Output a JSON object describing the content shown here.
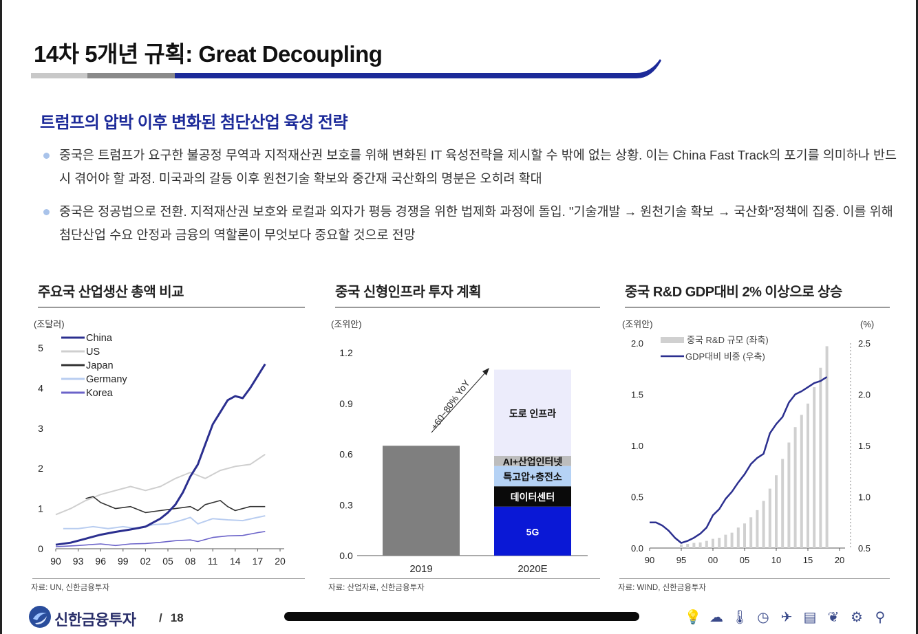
{
  "page": {
    "title": "14차 5개년 규획: Great Decoupling",
    "subtitle": "트럼프의 압박 이후 변화된 첨단산업 육성 전략",
    "bullets": [
      "중국은 트럼프가 요구한 불공정 무역과 지적재산권 보호를 위해 변화된 IT 육성전략을 제시할 수 밖에 없는 상황. 이는 China Fast Track의 포기를 의미하나 반드시 겪어야 할 과정. 미국과의 갈등 이후 원천기술 확보와 중간재 국산화의 명분은 오히려 확대",
      "중국은 정공법으로 전환. 지적재산권 보호와 로컬과 외자가 평등 경쟁을 위한 법제화 과정에 돌입. \"기술개발 → 원천기술 확보 → 국산화\"정책에 집중. 이를 위해 첨단산업 수요 안정과 금융의 역할론이 무엇보다 중요할 것으로 전망"
    ]
  },
  "panels": {
    "p1": {
      "title": "주요국 산업생산 총액 비교",
      "source": "자료: UN, 신한금융투자"
    },
    "p2": {
      "title": "중국 신형인프라 투자 계획",
      "source": "자료: 산업자료, 신한금융투자"
    },
    "p3": {
      "title": "중국 R&D GDP대비 2% 이상으로 상승",
      "source": "자료: WIND, 신한금융투자"
    }
  },
  "colors": {
    "navy": "#1c2a99",
    "china": "#2b2f8f",
    "us": "#cfcfcf",
    "japan": "#333333",
    "germany": "#b9cdf0",
    "korea": "#6b63c9",
    "bar2019": "#7f7f7f",
    "g5": "#0a18d6",
    "datacenter": "#0a0a0a",
    "uhv": "#b5d2f5",
    "ai": "#bdbdbd",
    "road": "#ececfb",
    "rnd_bar": "#d0d0d0",
    "rnd_line": "#2b2f8f"
  },
  "chart_data": [
    {
      "type": "line",
      "title": "주요국 산업생산 총액 비교",
      "ylabel": "(조달러)",
      "ylim": [
        0,
        5
      ],
      "yticks": [
        "0",
        "1",
        "2",
        "3",
        "4",
        "5"
      ],
      "xlim": [
        1990,
        2020
      ],
      "xticks": [
        "90",
        "93",
        "96",
        "99",
        "02",
        "05",
        "08",
        "11",
        "14",
        "17",
        "20"
      ],
      "legend_position": "top-left",
      "series": [
        {
          "name": "China",
          "color_key": "china",
          "width": 3,
          "x": [
            1990,
            1992,
            1994,
            1996,
            1998,
            2000,
            2002,
            2004,
            2005,
            2006,
            2007,
            2008,
            2009,
            2010,
            2011,
            2012,
            2013,
            2014,
            2015,
            2016,
            2017,
            2018
          ],
          "y": [
            0.1,
            0.15,
            0.25,
            0.35,
            0.42,
            0.48,
            0.55,
            0.75,
            0.9,
            1.1,
            1.4,
            1.8,
            2.1,
            2.6,
            3.1,
            3.4,
            3.7,
            3.8,
            3.75,
            4.0,
            4.3,
            4.6
          ]
        },
        {
          "name": "US",
          "color_key": "us",
          "width": 2,
          "x": [
            1990,
            1992,
            1994,
            1996,
            1998,
            2000,
            2002,
            2004,
            2006,
            2008,
            2010,
            2012,
            2014,
            2016,
            2018
          ],
          "y": [
            0.85,
            1.0,
            1.2,
            1.35,
            1.45,
            1.55,
            1.45,
            1.55,
            1.75,
            1.9,
            1.75,
            1.95,
            2.05,
            2.1,
            2.35
          ]
        },
        {
          "name": "Japan",
          "color_key": "japan",
          "width": 1.6,
          "x": [
            1994,
            1995,
            1996,
            1998,
            2000,
            2002,
            2004,
            2006,
            2008,
            2009,
            2010,
            2012,
            2013,
            2014,
            2016,
            2018
          ],
          "y": [
            1.25,
            1.3,
            1.15,
            1.0,
            1.05,
            0.9,
            0.95,
            1.0,
            1.05,
            0.95,
            1.1,
            1.2,
            1.05,
            0.95,
            1.05,
            1.05
          ]
        },
        {
          "name": "Germany",
          "color_key": "germany",
          "width": 2,
          "x": [
            1991,
            1993,
            1995,
            1997,
            1999,
            2001,
            2003,
            2005,
            2007,
            2008,
            2009,
            2011,
            2013,
            2015,
            2017,
            2018
          ],
          "y": [
            0.5,
            0.5,
            0.55,
            0.5,
            0.55,
            0.5,
            0.6,
            0.62,
            0.72,
            0.78,
            0.62,
            0.75,
            0.72,
            0.7,
            0.78,
            0.82
          ]
        },
        {
          "name": "Korea",
          "color_key": "korea",
          "width": 1.6,
          "x": [
            1990,
            1993,
            1996,
            1998,
            2000,
            2002,
            2004,
            2006,
            2008,
            2009,
            2011,
            2013,
            2015,
            2017,
            2018
          ],
          "y": [
            0.05,
            0.08,
            0.12,
            0.08,
            0.12,
            0.13,
            0.16,
            0.2,
            0.22,
            0.18,
            0.28,
            0.32,
            0.33,
            0.4,
            0.43
          ]
        }
      ]
    },
    {
      "type": "bar",
      "title": "중국 신형인프라 투자 계획",
      "ylabel": "(조위안)",
      "ylim": [
        0,
        1.2
      ],
      "yticks": [
        "0.0",
        "0.3",
        "0.6",
        "0.9",
        "1.2"
      ],
      "categories": [
        "2019",
        "2020E"
      ],
      "bar_2019": 0.65,
      "stack_2020E": [
        {
          "name": "5G",
          "value": 0.29,
          "color_key": "g5",
          "label_color": "#ffffff"
        },
        {
          "name": "데이터센터",
          "value": 0.12,
          "color_key": "datacenter",
          "label_color": "#ffffff"
        },
        {
          "name": "특고압+충전소",
          "value": 0.12,
          "color_key": "uhv",
          "label_color": "#111111"
        },
        {
          "name": "AI+산업인터넷",
          "value": 0.06,
          "color_key": "ai",
          "label_color": "#111111"
        },
        {
          "name": "도로 인프라",
          "value": 0.51,
          "color_key": "road",
          "label_color": "#111111"
        }
      ],
      "annotation": "+60~80% YoY"
    },
    {
      "type": "bar+line",
      "title": "중국 R&D GDP대비 2% 이상으로 상승",
      "ylabel_left": "(조위안)",
      "ylabel_right": "(%)",
      "ylim_left": [
        0,
        2.0
      ],
      "yticks_left": [
        "0.0",
        "0.5",
        "1.0",
        "1.5",
        "2.0"
      ],
      "ylim_right": [
        0.5,
        2.5
      ],
      "yticks_right": [
        "0.5",
        "1.0",
        "1.5",
        "2.0",
        "2.5"
      ],
      "xlim": [
        1990,
        2020
      ],
      "xticks": [
        "90",
        "95",
        "00",
        "05",
        "10",
        "15",
        "20"
      ],
      "legend": [
        {
          "name": "중국 R&D 규모 (좌축)",
          "kind": "bar"
        },
        {
          "name": "GDP대비 비중 (우축)",
          "kind": "line"
        }
      ],
      "bars": {
        "x": [
          1995,
          1996,
          1997,
          1998,
          1999,
          2000,
          2001,
          2002,
          2003,
          2004,
          2005,
          2006,
          2007,
          2008,
          2009,
          2010,
          2011,
          2012,
          2013,
          2014,
          2015,
          2016,
          2017,
          2018
        ],
        "y": [
          0.035,
          0.04,
          0.05,
          0.055,
          0.07,
          0.09,
          0.1,
          0.13,
          0.15,
          0.2,
          0.24,
          0.3,
          0.37,
          0.46,
          0.58,
          0.71,
          0.87,
          1.03,
          1.18,
          1.3,
          1.41,
          1.57,
          1.76,
          1.97
        ]
      },
      "line": {
        "x": [
          1990,
          1991,
          1992,
          1993,
          1994,
          1995,
          1996,
          1997,
          1998,
          1999,
          2000,
          2001,
          2002,
          2003,
          2004,
          2005,
          2006,
          2007,
          2008,
          2009,
          2010,
          2011,
          2012,
          2013,
          2014,
          2015,
          2016,
          2017,
          2018
        ],
        "y": [
          0.75,
          0.75,
          0.72,
          0.67,
          0.6,
          0.55,
          0.57,
          0.6,
          0.64,
          0.7,
          0.82,
          0.88,
          0.98,
          1.05,
          1.14,
          1.22,
          1.32,
          1.38,
          1.42,
          1.62,
          1.71,
          1.78,
          1.92,
          2.0,
          2.03,
          2.07,
          2.11,
          2.13,
          2.17
        ]
      }
    }
  ],
  "footer": {
    "brand": "신한금융투자",
    "separator": "/",
    "page_number": "18",
    "icons": [
      "lightbulb-icon",
      "cloud-icon",
      "thermometer-icon",
      "clock-icon",
      "airplane-icon",
      "document-icon",
      "leaf-icon",
      "gear-icon",
      "bicycle-icon"
    ]
  }
}
